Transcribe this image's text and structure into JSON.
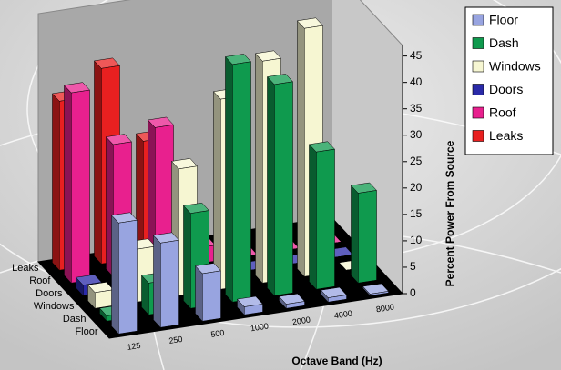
{
  "chart_data": {
    "type": "bar3d",
    "categories": [
      "125",
      "250",
      "500",
      "1000",
      "2000",
      "4000",
      "8000"
    ],
    "x_label": "Octave Band (Hz)",
    "y_label": "Percent Power From Source",
    "ylim": [
      0,
      47
    ],
    "yticks": [
      0,
      5,
      10,
      15,
      20,
      25,
      30,
      35,
      40,
      45
    ],
    "series": [
      {
        "name": "Floor",
        "color": "#98a4e0",
        "values": [
          21,
          16,
          9,
          1.5,
          0.8,
          0.8,
          0.3
        ]
      },
      {
        "name": "Dash",
        "color": "#0f9a4e",
        "values": [
          1,
          6,
          18,
          45,
          40,
          26,
          17
        ]
      },
      {
        "name": "Windows",
        "color": "#f6f6d2",
        "values": [
          3,
          10,
          24,
          36,
          42,
          47,
          0
        ]
      },
      {
        "name": "Doors",
        "color": "#2a2aa8",
        "values": [
          2,
          3,
          0,
          0,
          0,
          0,
          0
        ]
      },
      {
        "name": "Roof",
        "color": "#e8208e",
        "values": [
          36,
          25,
          27,
          3,
          0,
          0,
          0
        ]
      },
      {
        "name": "Leaks",
        "color": "#e82020",
        "values": [
          32,
          37,
          22,
          0,
          0,
          0,
          0
        ]
      }
    ],
    "legend": "top-right"
  }
}
